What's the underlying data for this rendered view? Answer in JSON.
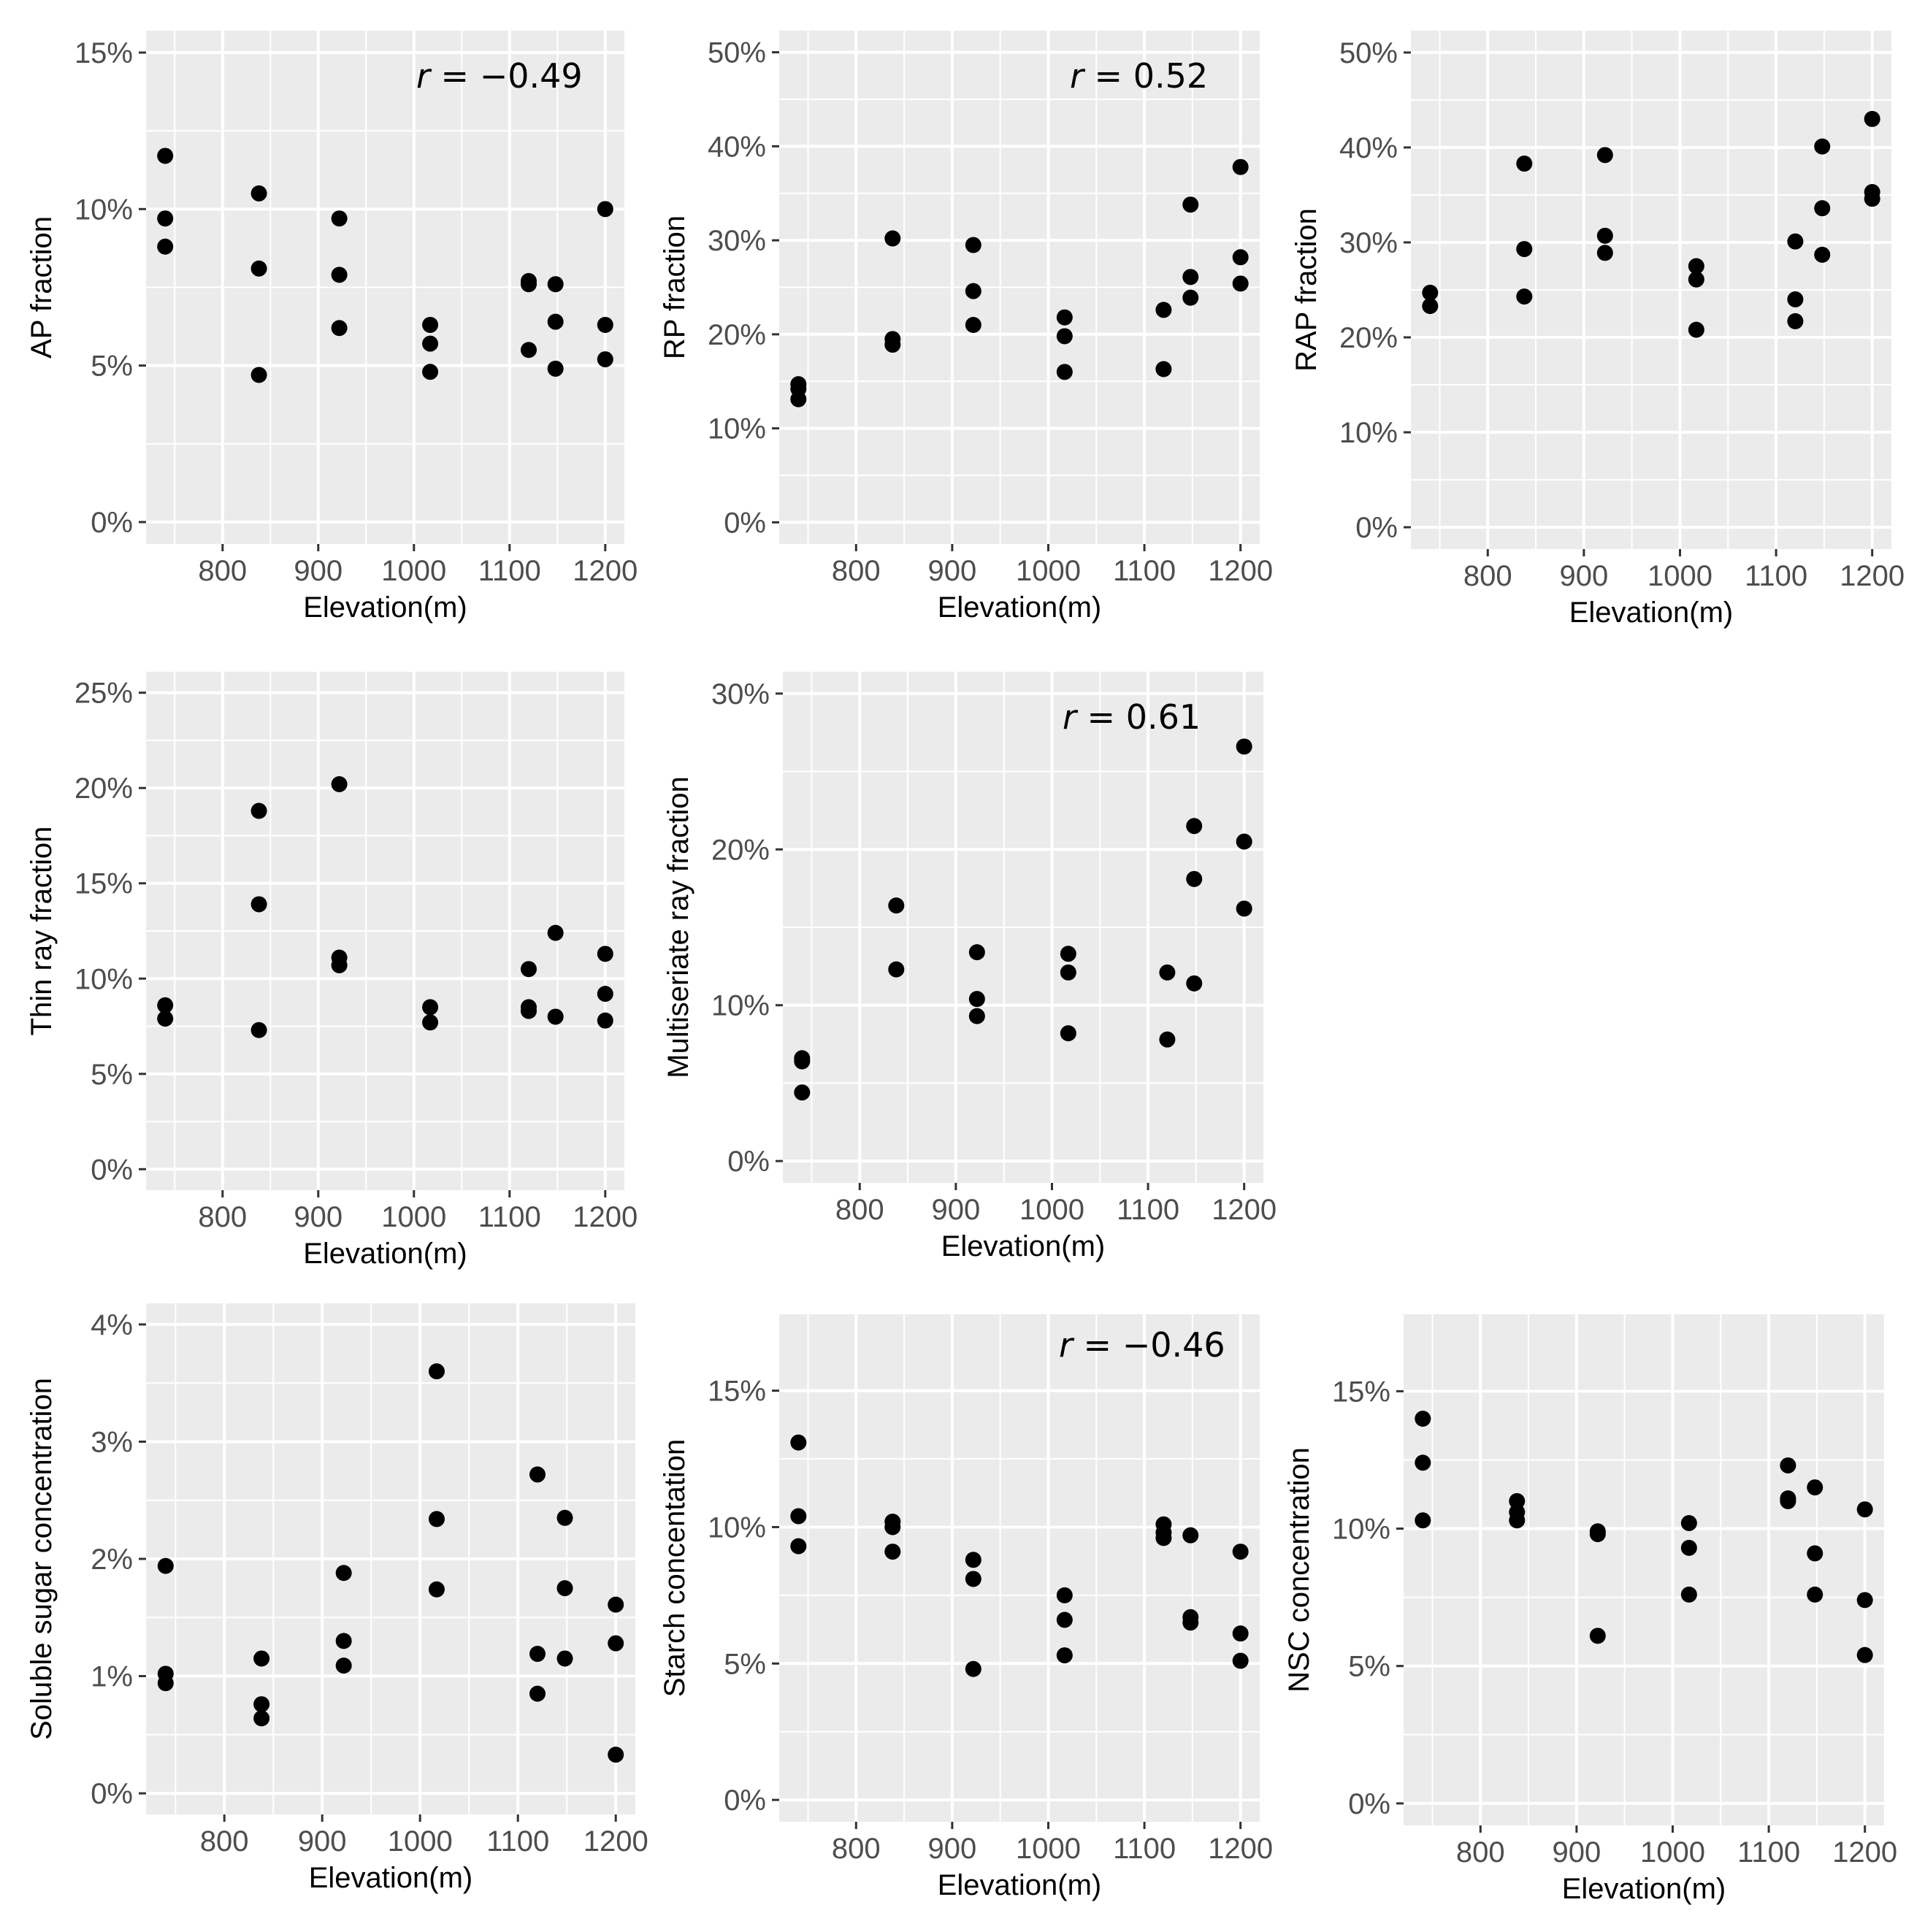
{
  "style": {
    "panel_background": "#ebebeb",
    "grid_color": "#ffffff",
    "point_color": "#000000",
    "tick_color": "#333333",
    "tick_label_color": "#4d4d4d"
  },
  "chart_data": [
    {
      "id": "ap",
      "type": "scatter",
      "title": "",
      "xlabel": "Elevation(m)",
      "ylabel": "AP fraction",
      "xlim": [
        720,
        1220
      ],
      "ylim": [
        -0.7,
        15.7
      ],
      "x_ticks": [
        800,
        900,
        1000,
        1100,
        1200
      ],
      "x_tick_labels": [
        "800",
        "900",
        "1000",
        "1100",
        "1200"
      ],
      "y_ticks": [
        0,
        5,
        10,
        15
      ],
      "y_tick_labels": [
        "0%",
        "5%",
        "10%",
        "15%"
      ],
      "annotation": {
        "italic": "r",
        "text": " = −0.49"
      },
      "points": [
        [
          740,
          11.7
        ],
        [
          740,
          9.7
        ],
        [
          740,
          8.8
        ],
        [
          838,
          10.5
        ],
        [
          838,
          8.1
        ],
        [
          838,
          4.7
        ],
        [
          922,
          9.7
        ],
        [
          922,
          7.9
        ],
        [
          922,
          6.2
        ],
        [
          1017,
          6.3
        ],
        [
          1017,
          5.7
        ],
        [
          1017,
          4.8
        ],
        [
          1120,
          7.7
        ],
        [
          1120,
          7.6
        ],
        [
          1120,
          5.5
        ],
        [
          1148,
          7.6
        ],
        [
          1148,
          6.4
        ],
        [
          1148,
          4.9
        ],
        [
          1200,
          10.0
        ],
        [
          1200,
          6.3
        ],
        [
          1200,
          5.2
        ]
      ]
    },
    {
      "id": "rp",
      "type": "scatter",
      "title": "",
      "xlabel": "Elevation(m)",
      "ylabel": "RP fraction",
      "xlim": [
        720,
        1220
      ],
      "ylim": [
        -2.3,
        52.3
      ],
      "x_ticks": [
        800,
        900,
        1000,
        1100,
        1200
      ],
      "x_tick_labels": [
        "800",
        "900",
        "1000",
        "1100",
        "1200"
      ],
      "y_ticks": [
        0,
        10,
        20,
        30,
        40,
        50
      ],
      "y_tick_labels": [
        "0%",
        "10%",
        "20%",
        "30%",
        "40%",
        "50%"
      ],
      "annotation": {
        "italic": "r",
        "text": " = 0.52"
      },
      "points": [
        [
          740,
          14.7
        ],
        [
          740,
          14.2
        ],
        [
          740,
          13.1
        ],
        [
          838,
          30.2
        ],
        [
          838,
          19.5
        ],
        [
          838,
          18.9
        ],
        [
          922,
          29.5
        ],
        [
          922,
          24.6
        ],
        [
          922,
          21.0
        ],
        [
          1017,
          21.8
        ],
        [
          1017,
          19.8
        ],
        [
          1017,
          16.0
        ],
        [
          1120,
          22.6
        ],
        [
          1120,
          16.3
        ],
        [
          1148,
          33.8
        ],
        [
          1148,
          26.1
        ],
        [
          1148,
          23.9
        ],
        [
          1200,
          37.8
        ],
        [
          1200,
          28.2
        ],
        [
          1200,
          25.4
        ]
      ]
    },
    {
      "id": "rap",
      "type": "scatter",
      "title": "",
      "xlabel": "Elevation(m)",
      "ylabel": "RAP fraction",
      "xlim": [
        720,
        1220
      ],
      "ylim": [
        -2.3,
        52.3
      ],
      "x_ticks": [
        800,
        900,
        1000,
        1100,
        1200
      ],
      "x_tick_labels": [
        "800",
        "900",
        "1000",
        "1100",
        "1200"
      ],
      "y_ticks": [
        0,
        10,
        20,
        30,
        40,
        50
      ],
      "y_tick_labels": [
        "0%",
        "10%",
        "20%",
        "30%",
        "40%",
        "50%"
      ],
      "annotation": null,
      "points": [
        [
          740,
          24.7
        ],
        [
          740,
          23.3
        ],
        [
          838,
          38.3
        ],
        [
          838,
          29.3
        ],
        [
          838,
          24.3
        ],
        [
          922,
          39.2
        ],
        [
          922,
          30.7
        ],
        [
          922,
          28.9
        ],
        [
          1017,
          27.5
        ],
        [
          1017,
          26.1
        ],
        [
          1017,
          20.8
        ],
        [
          1120,
          30.1
        ],
        [
          1120,
          24.0
        ],
        [
          1120,
          21.7
        ],
        [
          1148,
          40.1
        ],
        [
          1148,
          33.6
        ],
        [
          1148,
          28.7
        ],
        [
          1200,
          43.0
        ],
        [
          1200,
          35.3
        ],
        [
          1200,
          34.6
        ]
      ]
    },
    {
      "id": "thin",
      "type": "scatter",
      "title": "",
      "xlabel": "Elevation(m)",
      "ylabel": "Thin ray fraction",
      "xlim": [
        720,
        1220
      ],
      "ylim": [
        -1.1,
        26.1
      ],
      "x_ticks": [
        800,
        900,
        1000,
        1100,
        1200
      ],
      "x_tick_labels": [
        "800",
        "900",
        "1000",
        "1100",
        "1200"
      ],
      "y_ticks": [
        0,
        5,
        10,
        15,
        20,
        25
      ],
      "y_tick_labels": [
        "0%",
        "5%",
        "10%",
        "15%",
        "20%",
        "25%"
      ],
      "annotation": null,
      "points": [
        [
          740,
          8.6
        ],
        [
          740,
          7.9
        ],
        [
          838,
          18.8
        ],
        [
          838,
          13.9
        ],
        [
          838,
          7.3
        ],
        [
          922,
          20.2
        ],
        [
          922,
          11.1
        ],
        [
          922,
          10.7
        ],
        [
          1017,
          8.5
        ],
        [
          1017,
          7.7
        ],
        [
          1120,
          10.5
        ],
        [
          1120,
          8.5
        ],
        [
          1120,
          8.3
        ],
        [
          1148,
          12.4
        ],
        [
          1148,
          8.0
        ],
        [
          1200,
          11.3
        ],
        [
          1200,
          9.2
        ],
        [
          1200,
          7.8
        ]
      ]
    },
    {
      "id": "multi",
      "type": "scatter",
      "title": "",
      "xlabel": "Elevation(m)",
      "ylabel": "Multiseriate ray fraction",
      "xlim": [
        720,
        1220
      ],
      "ylim": [
        -1.4,
        31.4
      ],
      "x_ticks": [
        800,
        900,
        1000,
        1100,
        1200
      ],
      "x_tick_labels": [
        "800",
        "900",
        "1000",
        "1100",
        "1200"
      ],
      "y_ticks": [
        0,
        10,
        20,
        30
      ],
      "y_tick_labels": [
        "0%",
        "10%",
        "20%",
        "30%"
      ],
      "annotation": {
        "italic": "r",
        "text": " = 0.61"
      },
      "points": [
        [
          740,
          6.6
        ],
        [
          740,
          6.4
        ],
        [
          740,
          4.4
        ],
        [
          838,
          16.4
        ],
        [
          838,
          12.3
        ],
        [
          922,
          13.4
        ],
        [
          922,
          10.4
        ],
        [
          922,
          9.3
        ],
        [
          1017,
          13.3
        ],
        [
          1017,
          12.1
        ],
        [
          1017,
          8.2
        ],
        [
          1120,
          12.1
        ],
        [
          1120,
          7.8
        ],
        [
          1148,
          21.5
        ],
        [
          1148,
          18.1
        ],
        [
          1148,
          11.4
        ],
        [
          1200,
          26.6
        ],
        [
          1200,
          20.5
        ],
        [
          1200,
          16.2
        ]
      ]
    },
    {
      "id": "sugar",
      "type": "scatter",
      "title": "",
      "xlabel": "Elevation(m)",
      "ylabel": "Soluble sugar concentration",
      "xlim": [
        720,
        1220
      ],
      "ylim": [
        -0.18,
        4.18
      ],
      "x_ticks": [
        800,
        900,
        1000,
        1100,
        1200
      ],
      "x_tick_labels": [
        "800",
        "900",
        "1000",
        "1100",
        "1200"
      ],
      "y_ticks": [
        0,
        1,
        2,
        3,
        4
      ],
      "y_tick_labels": [
        "0%",
        "1%",
        "2%",
        "3%",
        "4%"
      ],
      "annotation": null,
      "points": [
        [
          740,
          1.94
        ],
        [
          740,
          1.02
        ],
        [
          740,
          0.94
        ],
        [
          838,
          1.15
        ],
        [
          838,
          0.76
        ],
        [
          838,
          0.64
        ],
        [
          922,
          1.88
        ],
        [
          922,
          1.3
        ],
        [
          922,
          1.09
        ],
        [
          1017,
          3.6
        ],
        [
          1017,
          2.34
        ],
        [
          1017,
          1.74
        ],
        [
          1120,
          2.72
        ],
        [
          1120,
          1.19
        ],
        [
          1120,
          0.85
        ],
        [
          1148,
          2.35
        ],
        [
          1148,
          1.75
        ],
        [
          1148,
          1.15
        ],
        [
          1200,
          1.61
        ],
        [
          1200,
          1.28
        ],
        [
          1200,
          0.33
        ]
      ]
    },
    {
      "id": "starch",
      "type": "scatter",
      "title": "",
      "xlabel": "Elevation(m)",
      "ylabel": "Starch concentation",
      "xlim": [
        720,
        1220
      ],
      "ylim": [
        -0.8,
        17.8
      ],
      "x_ticks": [
        800,
        900,
        1000,
        1100,
        1200
      ],
      "x_tick_labels": [
        "800",
        "900",
        "1000",
        "1100",
        "1200"
      ],
      "y_ticks": [
        0,
        5,
        10,
        15
      ],
      "y_tick_labels": [
        "0%",
        "5%",
        "10%",
        "15%"
      ],
      "annotation": {
        "italic": "r",
        "text": " = −0.46"
      },
      "points": [
        [
          740,
          13.1
        ],
        [
          740,
          10.4
        ],
        [
          740,
          9.3
        ],
        [
          838,
          10.2
        ],
        [
          838,
          10.0
        ],
        [
          838,
          9.1
        ],
        [
          922,
          8.8
        ],
        [
          922,
          8.1
        ],
        [
          922,
          4.8
        ],
        [
          1017,
          7.5
        ],
        [
          1017,
          6.6
        ],
        [
          1017,
          5.3
        ],
        [
          1120,
          10.1
        ],
        [
          1120,
          9.8
        ],
        [
          1120,
          9.6
        ],
        [
          1148,
          9.7
        ],
        [
          1148,
          6.7
        ],
        [
          1148,
          6.5
        ],
        [
          1200,
          9.1
        ],
        [
          1200,
          6.1
        ],
        [
          1200,
          5.1
        ]
      ]
    },
    {
      "id": "nsc",
      "type": "scatter",
      "title": "",
      "xlabel": "Elevation(m)",
      "ylabel": "NSC concentration",
      "xlim": [
        720,
        1220
      ],
      "ylim": [
        -0.8,
        17.8
      ],
      "x_ticks": [
        800,
        900,
        1000,
        1100,
        1200
      ],
      "x_tick_labels": [
        "800",
        "900",
        "1000",
        "1100",
        "1200"
      ],
      "y_ticks": [
        0,
        5,
        10,
        15
      ],
      "y_tick_labels": [
        "0%",
        "5%",
        "10%",
        "15%"
      ],
      "annotation": null,
      "points": [
        [
          740,
          14.0
        ],
        [
          740,
          12.4
        ],
        [
          740,
          10.3
        ],
        [
          838,
          11.0
        ],
        [
          838,
          10.6
        ],
        [
          838,
          10.3
        ],
        [
          922,
          9.9
        ],
        [
          922,
          9.8
        ],
        [
          922,
          6.1
        ],
        [
          1017,
          10.2
        ],
        [
          1017,
          9.3
        ],
        [
          1017,
          7.6
        ],
        [
          1120,
          12.3
        ],
        [
          1120,
          11.1
        ],
        [
          1120,
          11.0
        ],
        [
          1148,
          11.5
        ],
        [
          1148,
          9.1
        ],
        [
          1148,
          7.6
        ],
        [
          1200,
          10.7
        ],
        [
          1200,
          7.4
        ],
        [
          1200,
          5.4
        ]
      ]
    }
  ]
}
